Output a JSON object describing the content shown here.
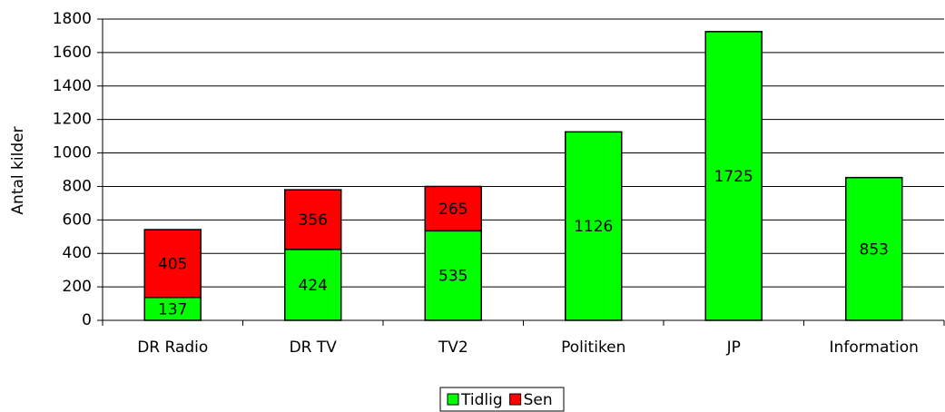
{
  "chart_data": {
    "type": "stacked_bar",
    "y_label": "Antal kilder",
    "categories": [
      "DR Radio",
      "DR TV",
      "TV2",
      "Politiken",
      "JP",
      "Information"
    ],
    "series": [
      {
        "name": "Tidlig",
        "color": "#00ff00",
        "values": [
          137,
          424,
          535,
          1126,
          1725,
          853
        ]
      },
      {
        "name": "Sen",
        "color": "#ff0000",
        "values": [
          405,
          356,
          265,
          null,
          null,
          null
        ]
      }
    ],
    "ylim": [
      0,
      1800
    ],
    "yticks": [
      0,
      200,
      400,
      600,
      800,
      1000,
      1200,
      1400,
      1600,
      1800
    ],
    "grid": true,
    "legend": "bottom"
  }
}
